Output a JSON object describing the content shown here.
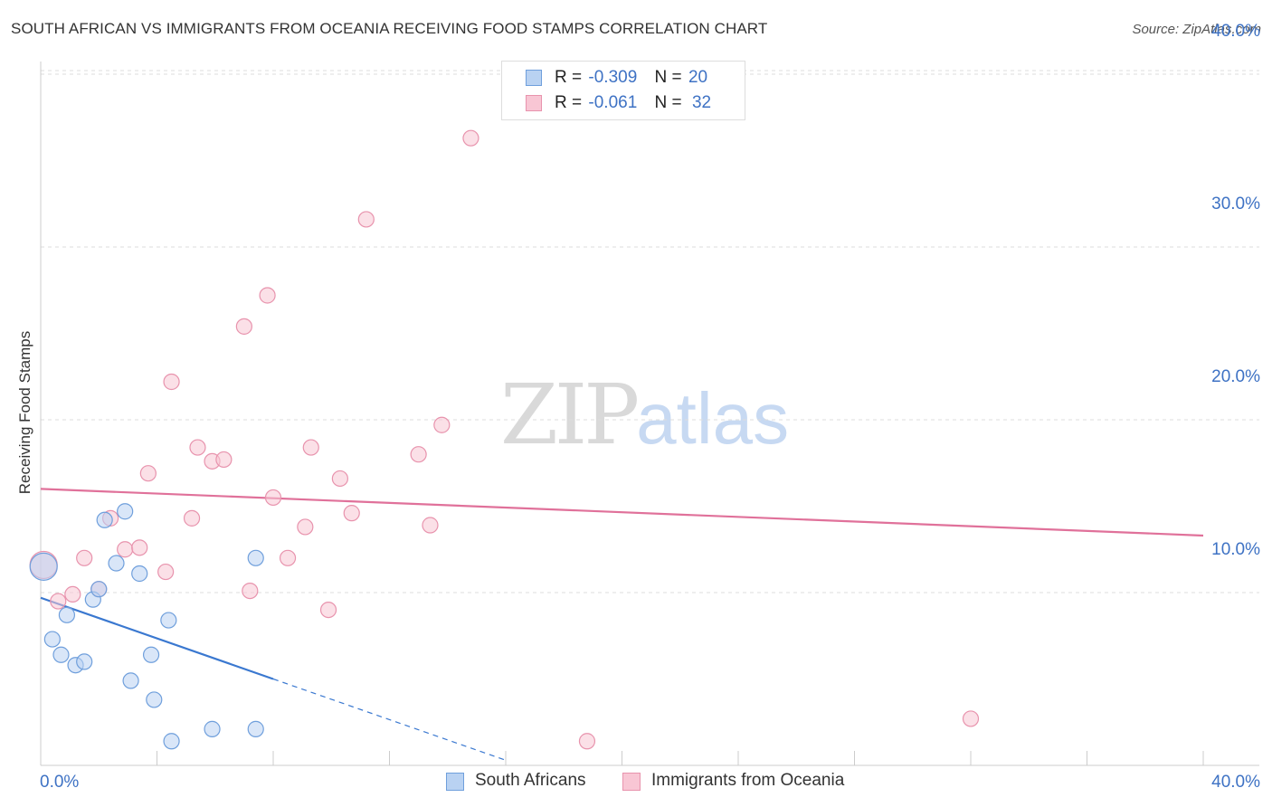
{
  "title": "SOUTH AFRICAN VS IMMIGRANTS FROM OCEANIA RECEIVING FOOD STAMPS CORRELATION CHART",
  "source": "Source: ZipAtlas.com",
  "watermark": {
    "zip": "ZIP",
    "atlas": "atlas"
  },
  "legend": {
    "r_label": "R =",
    "n_label": "N =",
    "series1": {
      "r": "-0.309",
      "n": "20"
    },
    "series2": {
      "r": "-0.061",
      "n": "32"
    }
  },
  "colors": {
    "blue_fill": "#b9d2f2",
    "blue_stroke": "#6f9fdc",
    "blue_line": "#3a78d0",
    "pink_fill": "#f8c6d4",
    "pink_stroke": "#e893ad",
    "pink_line": "#e0719a",
    "tick_text": "#3e72c4",
    "grid": "#dddddd"
  },
  "chart_data": {
    "type": "scatter",
    "title": "SOUTH AFRICAN VS IMMIGRANTS FROM OCEANIA RECEIVING FOOD STAMPS CORRELATION CHART",
    "xlabel": "",
    "ylabel": "Receiving Food Stamps",
    "xlim": [
      0,
      40
    ],
    "ylim": [
      0,
      42
    ],
    "x_tick_labels": [
      "0.0%",
      "40.0%"
    ],
    "y_ticks": [
      10,
      20,
      30,
      40
    ],
    "y_tick_labels": [
      "10.0%",
      "20.0%",
      "30.0%",
      "40.0%"
    ],
    "grid": true,
    "legend_position": "top-center",
    "series": [
      {
        "name": "South Africans",
        "color": "#6f9fdc",
        "points": [
          {
            "x": 0.1,
            "y": 11.5,
            "big": true
          },
          {
            "x": 0.4,
            "y": 7.3
          },
          {
            "x": 0.7,
            "y": 6.4
          },
          {
            "x": 0.9,
            "y": 8.7
          },
          {
            "x": 1.2,
            "y": 5.8
          },
          {
            "x": 1.5,
            "y": 6.0
          },
          {
            "x": 1.8,
            "y": 9.6
          },
          {
            "x": 2.0,
            "y": 10.2
          },
          {
            "x": 2.2,
            "y": 14.2
          },
          {
            "x": 2.6,
            "y": 11.7
          },
          {
            "x": 2.9,
            "y": 14.7
          },
          {
            "x": 3.1,
            "y": 4.9
          },
          {
            "x": 3.4,
            "y": 11.1
          },
          {
            "x": 3.8,
            "y": 6.4
          },
          {
            "x": 3.9,
            "y": 3.8
          },
          {
            "x": 4.4,
            "y": 8.4
          },
          {
            "x": 4.5,
            "y": 1.4
          },
          {
            "x": 5.9,
            "y": 2.1
          },
          {
            "x": 7.4,
            "y": 12.0
          },
          {
            "x": 7.4,
            "y": 2.1
          }
        ],
        "trend": {
          "x0": 0.0,
          "y0": 9.7,
          "x1": 8.0,
          "y1": 5.0,
          "dash_to_x": 16.0,
          "dash_to_y": 0.3
        }
      },
      {
        "name": "Immigrants from Oceania",
        "color": "#e893ad",
        "points": [
          {
            "x": 0.1,
            "y": 11.6,
            "big": true
          },
          {
            "x": 0.6,
            "y": 9.5
          },
          {
            "x": 1.1,
            "y": 9.9
          },
          {
            "x": 1.5,
            "y": 12.0
          },
          {
            "x": 2.0,
            "y": 10.2
          },
          {
            "x": 2.4,
            "y": 14.3
          },
          {
            "x": 2.9,
            "y": 12.5
          },
          {
            "x": 3.4,
            "y": 12.6
          },
          {
            "x": 3.7,
            "y": 16.9
          },
          {
            "x": 4.3,
            "y": 11.2
          },
          {
            "x": 4.5,
            "y": 22.2
          },
          {
            "x": 5.2,
            "y": 14.3
          },
          {
            "x": 5.4,
            "y": 18.4
          },
          {
            "x": 5.9,
            "y": 17.6
          },
          {
            "x": 6.3,
            "y": 17.7
          },
          {
            "x": 7.0,
            "y": 25.4
          },
          {
            "x": 7.2,
            "y": 10.1
          },
          {
            "x": 7.8,
            "y": 27.2
          },
          {
            "x": 8.0,
            "y": 15.5
          },
          {
            "x": 8.5,
            "y": 12.0
          },
          {
            "x": 9.1,
            "y": 13.8
          },
          {
            "x": 9.3,
            "y": 18.4
          },
          {
            "x": 9.9,
            "y": 9.0
          },
          {
            "x": 10.3,
            "y": 16.6
          },
          {
            "x": 10.7,
            "y": 14.6
          },
          {
            "x": 11.2,
            "y": 31.6
          },
          {
            "x": 13.0,
            "y": 18.0
          },
          {
            "x": 13.4,
            "y": 13.9
          },
          {
            "x": 13.8,
            "y": 19.7
          },
          {
            "x": 14.8,
            "y": 36.3
          },
          {
            "x": 18.8,
            "y": 1.4
          },
          {
            "x": 32.0,
            "y": 2.7
          }
        ],
        "trend": {
          "x0": 0.0,
          "y0": 16.0,
          "x1": 40.0,
          "y1": 13.3
        }
      }
    ]
  }
}
